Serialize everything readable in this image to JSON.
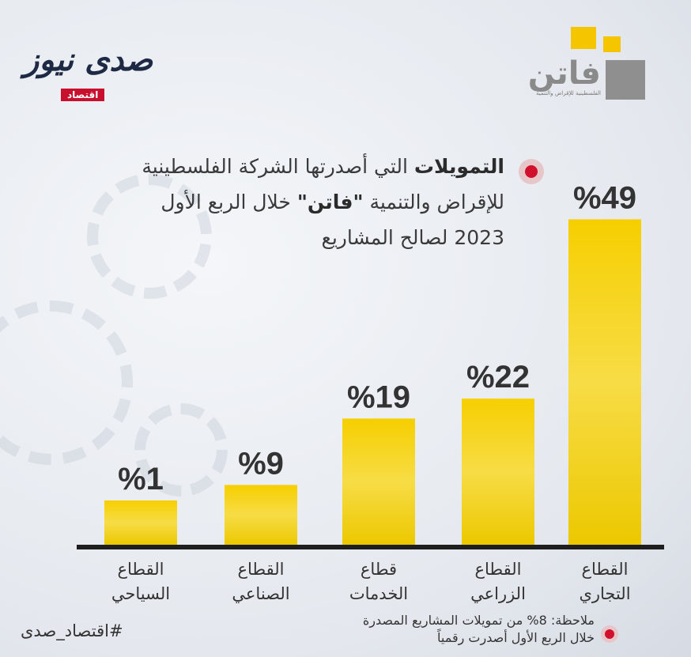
{
  "brand": {
    "sada_name": "صدى نيوز",
    "sada_sub": "اقتصاد",
    "faten_name": "فاتن",
    "faten_tag": "الفلسطينية للإقراض والتنمية",
    "accent_red": "#d0102c",
    "bar_yellow": "#f2c800"
  },
  "title": {
    "bold": "التمويلات",
    "line1_rest": " التي أصدرتها الشركة الفلسطينية",
    "line2_pre": "للإقراض والتنمية ",
    "line2_bold": "\"فاتن\"",
    "line2_post": " خلال الربع الأول",
    "line3": "2023 لصالح المشاريع"
  },
  "chart_data": {
    "type": "bar",
    "categories": [
      "القطاع السياحي",
      "القطاع الصناعي",
      "قطاع الخدمات",
      "القطاع الزراعي",
      "القطاع التجاري"
    ],
    "category_lines": [
      [
        "القطاع",
        "السياحي"
      ],
      [
        "القطاع",
        "الصناعي"
      ],
      [
        "قطاع",
        "الخدمات"
      ],
      [
        "القطاع",
        "الزراعي"
      ],
      [
        "القطاع",
        "التجاري"
      ]
    ],
    "values": [
      1,
      9,
      19,
      22,
      49
    ],
    "value_labels": [
      "%1",
      "%9",
      "%19",
      "%22",
      "%49"
    ],
    "unit": "%"
  },
  "footer": {
    "hashtag": "#اقتصاد_صدى",
    "note_line1": "ملاحظة: 8% من تمويلات المشاريع المصدرة",
    "note_line2": "خلال الربع الأول أصدرت رقمياً"
  }
}
